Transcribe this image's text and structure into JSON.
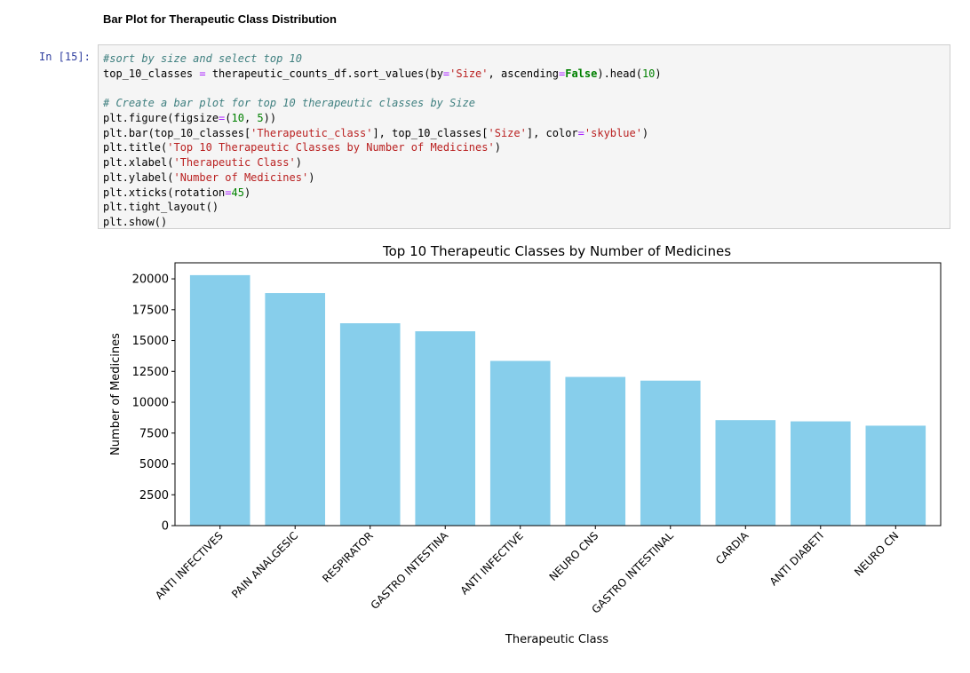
{
  "markdown_heading": "Bar Plot for Therapeutic Class Distribution",
  "cell": {
    "prompt": "In [15]:",
    "code_lines": [
      [
        {
          "t": "#sort by size and select top 10",
          "c": "cm"
        }
      ],
      [
        {
          "t": "top_10_classes ",
          "c": ""
        },
        {
          "t": "=",
          "c": "op"
        },
        {
          "t": " therapeutic_counts_df.sort_values(by",
          "c": ""
        },
        {
          "t": "=",
          "c": "op"
        },
        {
          "t": "'Size'",
          "c": "st"
        },
        {
          "t": ", ascending",
          "c": ""
        },
        {
          "t": "=",
          "c": "op"
        },
        {
          "t": "False",
          "c": "kw"
        },
        {
          "t": ").head(",
          "c": ""
        },
        {
          "t": "10",
          "c": "nu"
        },
        {
          "t": ")",
          "c": ""
        }
      ],
      [],
      [
        {
          "t": "# Create a bar plot for top 10 therapeutic classes by Size",
          "c": "cm"
        }
      ],
      [
        {
          "t": "plt.figure(figsize",
          "c": ""
        },
        {
          "t": "=",
          "c": "op"
        },
        {
          "t": "(",
          "c": ""
        },
        {
          "t": "10",
          "c": "nu"
        },
        {
          "t": ", ",
          "c": ""
        },
        {
          "t": "5",
          "c": "nu"
        },
        {
          "t": "))",
          "c": ""
        }
      ],
      [
        {
          "t": "plt.bar(top_10_classes[",
          "c": ""
        },
        {
          "t": "'Therapeutic_class'",
          "c": "st"
        },
        {
          "t": "], top_10_classes[",
          "c": ""
        },
        {
          "t": "'Size'",
          "c": "st"
        },
        {
          "t": "], color",
          "c": ""
        },
        {
          "t": "=",
          "c": "op"
        },
        {
          "t": "'skyblue'",
          "c": "st"
        },
        {
          "t": ")",
          "c": ""
        }
      ],
      [
        {
          "t": "plt.title(",
          "c": ""
        },
        {
          "t": "'Top 10 Therapeutic Classes by Number of Medicines'",
          "c": "st"
        },
        {
          "t": ")",
          "c": ""
        }
      ],
      [
        {
          "t": "plt.xlabel(",
          "c": ""
        },
        {
          "t": "'Therapeutic Class'",
          "c": "st"
        },
        {
          "t": ")",
          "c": ""
        }
      ],
      [
        {
          "t": "plt.ylabel(",
          "c": ""
        },
        {
          "t": "'Number of Medicines'",
          "c": "st"
        },
        {
          "t": ")",
          "c": ""
        }
      ],
      [
        {
          "t": "plt.xticks(rotation",
          "c": ""
        },
        {
          "t": "=",
          "c": "op"
        },
        {
          "t": "45",
          "c": "nu"
        },
        {
          "t": ")",
          "c": ""
        }
      ],
      [
        {
          "t": "plt.tight_layout()",
          "c": ""
        }
      ],
      [
        {
          "t": "plt.show()",
          "c": ""
        }
      ]
    ]
  },
  "chart_data": {
    "type": "bar",
    "title": "Top 10 Therapeutic Classes by Number of Medicines",
    "xlabel": "Therapeutic Class",
    "ylabel": "Number of Medicines",
    "categories": [
      "ANTI INFECTIVES",
      "PAIN ANALGESIC",
      "RESPIRATOR",
      "GASTRO INTESTINA",
      "ANTI INFECTIVE",
      "NEURO CNS",
      "GASTRO INTESTINAL",
      "CARDIA",
      "ANTI DIABETI",
      "NEURO CN"
    ],
    "values": [
      20300,
      18850,
      16400,
      15750,
      13350,
      12050,
      11750,
      8550,
      8450,
      8100
    ],
    "yticks": [
      0,
      2500,
      5000,
      7500,
      10000,
      12500,
      15000,
      17500,
      20000
    ],
    "ylim": [
      0,
      21300
    ],
    "bar_color": "#87ceeb",
    "grid": false,
    "legend": "none",
    "xtick_rotation": 45
  }
}
